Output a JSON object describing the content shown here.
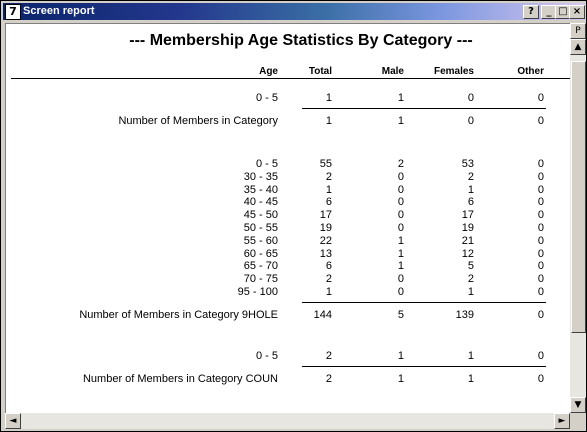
{
  "window": {
    "icon": "7",
    "title": "Screen report",
    "help_label": "?",
    "minimize_label": "_",
    "maximize_label": "□",
    "close_label": "×"
  },
  "scroll": {
    "top_marker": "P",
    "up_arrow": "▲",
    "down_arrow": "▼",
    "left_arrow": "◄",
    "right_arrow": "►"
  },
  "report": {
    "title": "---  Membership Age Statistics By Category  ---",
    "columns": {
      "age": "Age",
      "total": "Total",
      "male": "Male",
      "females": "Females",
      "other": "Other"
    },
    "groups": [
      {
        "rows": [
          {
            "age": "0 - 5",
            "total": "1",
            "male": "1",
            "females": "0",
            "other": "0"
          }
        ],
        "summary": {
          "label": "Number of Members in Category",
          "total": "1",
          "male": "1",
          "females": "0",
          "other": "0"
        }
      },
      {
        "rows": [
          {
            "age": "0 - 5",
            "total": "55",
            "male": "2",
            "females": "53",
            "other": "0"
          },
          {
            "age": "30 - 35",
            "total": "2",
            "male": "0",
            "females": "2",
            "other": "0"
          },
          {
            "age": "35 - 40",
            "total": "1",
            "male": "0",
            "females": "1",
            "other": "0"
          },
          {
            "age": "40 - 45",
            "total": "6",
            "male": "0",
            "females": "6",
            "other": "0"
          },
          {
            "age": "45 - 50",
            "total": "17",
            "male": "0",
            "females": "17",
            "other": "0"
          },
          {
            "age": "50 - 55",
            "total": "19",
            "male": "0",
            "females": "19",
            "other": "0"
          },
          {
            "age": "55 - 60",
            "total": "22",
            "male": "1",
            "females": "21",
            "other": "0"
          },
          {
            "age": "60 - 65",
            "total": "13",
            "male": "1",
            "females": "12",
            "other": "0"
          },
          {
            "age": "65 - 70",
            "total": "6",
            "male": "1",
            "females": "5",
            "other": "0"
          },
          {
            "age": "70 - 75",
            "total": "2",
            "male": "0",
            "females": "2",
            "other": "0"
          },
          {
            "age": "95 - 100",
            "total": "1",
            "male": "0",
            "females": "1",
            "other": "0"
          }
        ],
        "summary": {
          "label": "Number of Members in Category 9HOLE",
          "total": "144",
          "male": "5",
          "females": "139",
          "other": "0"
        }
      },
      {
        "rows": [
          {
            "age": "0 - 5",
            "total": "2",
            "male": "1",
            "females": "1",
            "other": "0"
          }
        ],
        "summary": {
          "label": "Number of Members in Category COUN",
          "total": "2",
          "male": "1",
          "females": "1",
          "other": "0"
        }
      }
    ]
  }
}
